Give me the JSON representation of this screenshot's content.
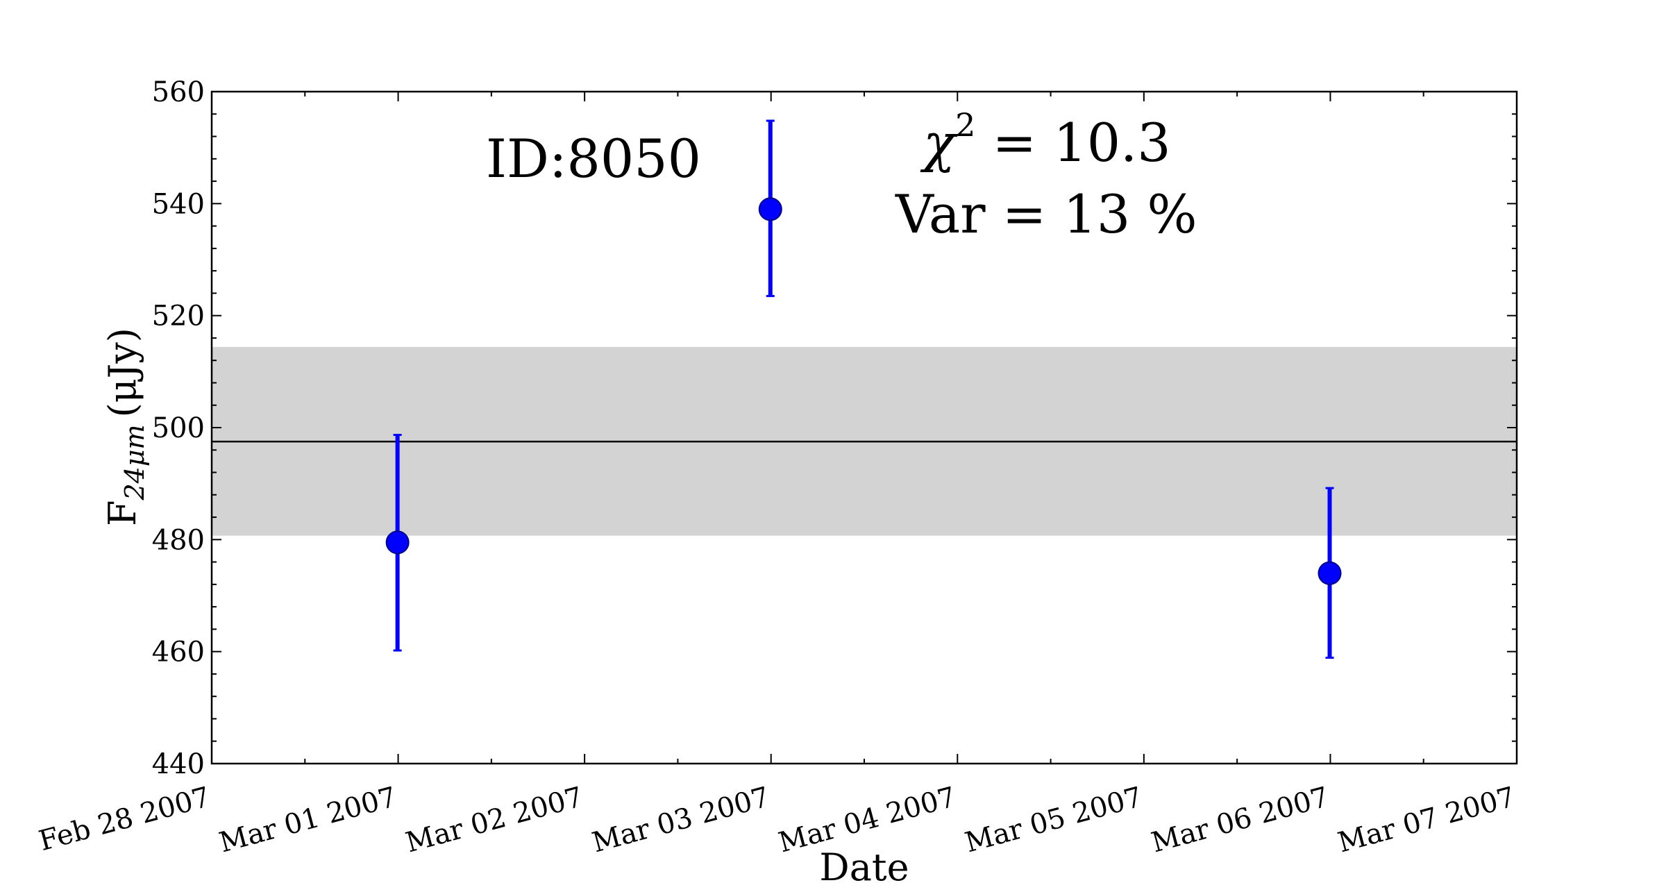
{
  "chart_data": {
    "type": "scatter",
    "title": "",
    "xlabel": "Date",
    "ylabel": "F",
    "ylabel_sub": "24μm",
    "ylabel_unit": "(μJy)",
    "x_tick_labels": [
      "Feb 28 2007",
      "Mar 01 2007",
      "Mar 02 2007",
      "Mar 03 2007",
      "Mar 04 2007",
      "Mar 05 2007",
      "Mar 06 2007",
      "Mar 07 2007"
    ],
    "x_range": [
      "2007-02-28",
      "2007-03-07"
    ],
    "ylim": [
      440,
      560
    ],
    "y_ticks": [
      440,
      460,
      480,
      500,
      520,
      540,
      560
    ],
    "grid": false,
    "points": [
      {
        "x": "2007-02-28 23:55",
        "y": 479.5,
        "yerr_low": 460.2,
        "yerr_high": 498.7
      },
      {
        "x": "2007-03-02 23:55",
        "y": 539.0,
        "yerr_low": 523.5,
        "yerr_high": 554.8
      },
      {
        "x": "2007-03-05 23:55",
        "y": 474.0,
        "yerr_low": 458.9,
        "yerr_high": 489.2
      }
    ],
    "mean_line": 497.5,
    "band": [
      480.7,
      514.4
    ],
    "annotations": {
      "id_label": "ID:8050",
      "chi_label": "χ",
      "chi_sup": "2",
      "chi_value": " = 10.3",
      "var_label": "Var = 13 %"
    },
    "colors": {
      "points": "#0000ff",
      "band": "#d3d3d3",
      "mean_line": "#000000"
    }
  }
}
